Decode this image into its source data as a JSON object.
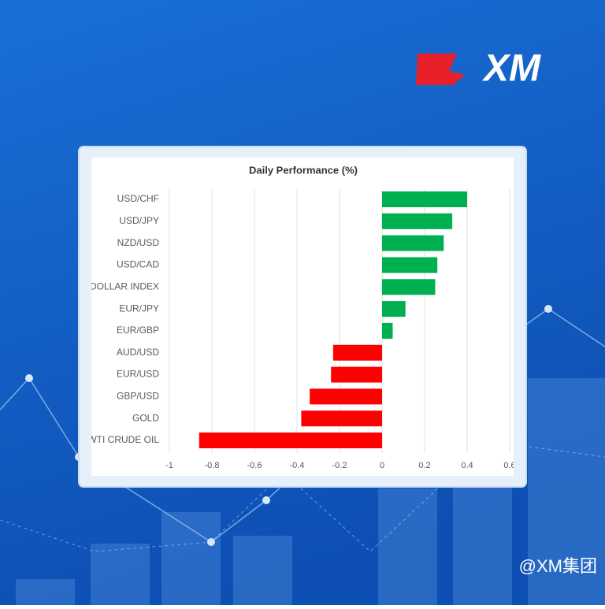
{
  "brand": {
    "logo": "XM",
    "watermark": "@XM集团"
  },
  "chart_data": {
    "type": "bar",
    "orientation": "horizontal",
    "title": "Daily Performance (%)",
    "categories": [
      "USD/CHF",
      "USD/JPY",
      "NZD/USD",
      "USD/CAD",
      "DOLLAR INDEX",
      "EUR/JPY",
      "EUR/GBP",
      "AUD/USD",
      "EUR/USD",
      "GBP/USD",
      "GOLD",
      "WTI CRUDE OIL"
    ],
    "values": [
      0.4,
      0.33,
      0.29,
      0.26,
      0.25,
      0.11,
      0.05,
      -0.23,
      -0.24,
      -0.34,
      -0.38,
      -0.86
    ],
    "positive_color": "#00b050",
    "negative_color": "#ff0000",
    "xlim": [
      -1,
      0.6
    ],
    "xticks": [
      -1,
      -0.8,
      -0.6,
      -0.4,
      -0.2,
      0,
      0.2,
      0.4,
      0.6
    ],
    "grid": true
  }
}
